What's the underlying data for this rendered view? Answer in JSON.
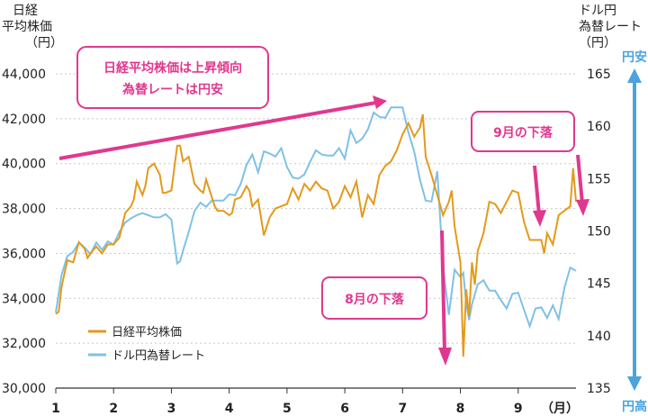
{
  "colors": {
    "nikkei": "#e39a1c",
    "usdjpy": "#7fc1e6",
    "annotation": "#e0388f",
    "yen_arrow": "#4aa3df",
    "grid": "#c8c8c8"
  },
  "chart_data": {
    "type": "line",
    "left_axis": {
      "label_lines": [
        "日経",
        "平均株価",
        "（円）"
      ],
      "ticks": [
        "44,000",
        "42,000",
        "40,000",
        "38,000",
        "36,000",
        "34,000",
        "32,000",
        "30,000"
      ],
      "range": [
        30000,
        44000
      ]
    },
    "right_axis": {
      "label_lines": [
        "ドル円",
        "為替レート",
        "（円）"
      ],
      "ticks": [
        "165",
        "160",
        "155",
        "150",
        "145",
        "140",
        "135"
      ],
      "range": [
        135,
        165
      ]
    },
    "x_axis": {
      "ticks": [
        "1",
        "2",
        "3",
        "4",
        "5",
        "6",
        "7",
        "8",
        "9"
      ],
      "unit": "（月）",
      "range": [
        1,
        10
      ]
    },
    "grid": "horizontal dotted",
    "legend_position": "bottom-left",
    "series": [
      {
        "name": "日経平均株価",
        "axis": "left",
        "x": [
          1.0,
          1.05,
          1.1,
          1.2,
          1.3,
          1.4,
          1.5,
          1.55,
          1.6,
          1.7,
          1.8,
          1.9,
          2.0,
          2.1,
          2.2,
          2.3,
          2.35,
          2.4,
          2.5,
          2.55,
          2.6,
          2.7,
          2.8,
          2.85,
          2.9,
          3.0,
          3.1,
          3.15,
          3.2,
          3.3,
          3.4,
          3.5,
          3.55,
          3.6,
          3.7,
          3.75,
          3.8,
          3.9,
          4.0,
          4.05,
          4.1,
          4.2,
          4.3,
          4.35,
          4.4,
          4.5,
          4.6,
          4.7,
          4.8,
          4.9,
          5.0,
          5.1,
          5.2,
          5.3,
          5.4,
          5.5,
          5.6,
          5.7,
          5.8,
          5.9,
          6.0,
          6.1,
          6.2,
          6.3,
          6.4,
          6.5,
          6.6,
          6.7,
          6.8,
          6.9,
          7.0,
          7.1,
          7.2,
          7.3,
          7.35,
          7.4,
          7.5,
          7.6,
          7.7,
          7.8,
          7.85,
          7.9,
          8.0,
          8.05,
          8.1,
          8.15,
          8.2,
          8.25,
          8.3,
          8.4,
          8.5,
          8.6,
          8.7,
          8.8,
          8.9,
          9.0,
          9.1,
          9.2,
          9.3,
          9.4,
          9.45,
          9.5,
          9.6,
          9.7,
          9.8,
          9.9,
          9.95,
          10.0
        ],
        "values": [
          33300,
          33400,
          34500,
          35700,
          35600,
          36500,
          36200,
          35800,
          36000,
          36300,
          36000,
          36400,
          36400,
          36700,
          37800,
          38100,
          38400,
          39200,
          38600,
          39000,
          39800,
          40000,
          39500,
          38700,
          38700,
          38800,
          40800,
          40800,
          40100,
          40300,
          39100,
          38800,
          38700,
          39300,
          38500,
          38100,
          37900,
          37900,
          37700,
          37800,
          38400,
          38500,
          39000,
          38800,
          38100,
          38400,
          36800,
          37600,
          38000,
          38100,
          38200,
          38900,
          38400,
          39100,
          38800,
          39200,
          38900,
          38800,
          38000,
          38300,
          39000,
          38500,
          39200,
          37600,
          38600,
          38200,
          39500,
          39900,
          40100,
          40600,
          41300,
          41800,
          41200,
          41600,
          42200,
          40300,
          39500,
          38600,
          37700,
          38300,
          38800,
          37200,
          35600,
          31400,
          34400,
          33200,
          35600,
          34600,
          36100,
          36900,
          38300,
          38200,
          37800,
          38300,
          38800,
          38700,
          37400,
          36600,
          36600,
          36600,
          36000,
          36900,
          36400,
          37700,
          37900,
          38100,
          39800,
          38300
        ]
      },
      {
        "name": "ドル円為替レート",
        "axis": "right",
        "x": [
          1.0,
          1.1,
          1.2,
          1.3,
          1.4,
          1.5,
          1.6,
          1.7,
          1.8,
          1.9,
          2.0,
          2.1,
          2.2,
          2.3,
          2.4,
          2.5,
          2.6,
          2.7,
          2.8,
          2.9,
          3.0,
          3.1,
          3.15,
          3.2,
          3.3,
          3.4,
          3.5,
          3.6,
          3.7,
          3.8,
          3.9,
          4.0,
          4.1,
          4.2,
          4.3,
          4.4,
          4.5,
          4.6,
          4.7,
          4.8,
          4.9,
          5.0,
          5.1,
          5.2,
          5.3,
          5.4,
          5.5,
          5.6,
          5.7,
          5.8,
          5.9,
          6.0,
          6.1,
          6.2,
          6.3,
          6.4,
          6.5,
          6.6,
          6.7,
          6.8,
          6.9,
          7.0,
          7.1,
          7.2,
          7.3,
          7.4,
          7.5,
          7.6,
          7.7,
          7.8,
          7.9,
          8.0,
          8.05,
          8.1,
          8.15,
          8.2,
          8.3,
          8.4,
          8.5,
          8.6,
          8.7,
          8.8,
          8.9,
          9.0,
          9.1,
          9.2,
          9.3,
          9.4,
          9.5,
          9.6,
          9.7,
          9.8,
          9.9,
          10.0
        ],
        "values": [
          142.2,
          145.8,
          147.6,
          148.0,
          148.9,
          148.4,
          147.8,
          148.9,
          148.2,
          149.0,
          148.7,
          149.9,
          150.8,
          151.2,
          151.5,
          151.7,
          151.5,
          151.3,
          151.3,
          151.6,
          151.1,
          146.9,
          147.1,
          148.1,
          149.9,
          151.9,
          152.7,
          152.3,
          152.9,
          152.9,
          152.9,
          153.5,
          153.4,
          154.5,
          156.3,
          157.3,
          155.6,
          157.6,
          157.4,
          157.1,
          157.9,
          156.1,
          155.1,
          155.0,
          155.4,
          156.6,
          157.7,
          157.3,
          157.2,
          157.2,
          157.9,
          156.9,
          159.6,
          158.4,
          158.8,
          159.7,
          161.3,
          160.9,
          160.8,
          161.8,
          161.8,
          161.8,
          159.4,
          157.6,
          154.9,
          152.9,
          152.8,
          155.7,
          146.6,
          142.0,
          146.3,
          145.6,
          146.0,
          143.1,
          141.5,
          143.0,
          144.9,
          145.3,
          144.3,
          144.3,
          143.4,
          142.6,
          144.0,
          144.1,
          142.5,
          140.9,
          142.6,
          142.7,
          141.7,
          142.9,
          141.6,
          144.6,
          146.5,
          146.2
        ]
      }
    ]
  },
  "annotations": {
    "trend_line1": "日経平均株価は上昇傾向",
    "trend_line2": "為替レートは円安",
    "aug_drop": "8月の下落",
    "sep_drop": "9月の下落"
  },
  "yen_scale": {
    "top": "円安",
    "bottom": "円高"
  }
}
